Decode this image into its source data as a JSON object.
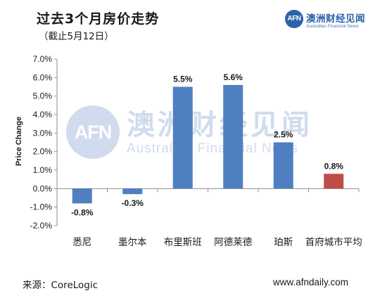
{
  "header": {
    "title": "过去3个月房价走势",
    "subtitle": "（截止5月12日）"
  },
  "logo": {
    "mark": "AFN",
    "name_cn": "澳洲财经见闻",
    "name_en": "Australian Financial News"
  },
  "watermark": {
    "mark": "AFN",
    "name_cn": "澳洲财经见闻",
    "name_en": "Australian Financial News"
  },
  "footer": {
    "source": "来源：CoreLogic",
    "website": "www.afndaily.com"
  },
  "colors": {
    "bar_blue": "#4f7fc0",
    "bar_red": "#bf4d45"
  },
  "chart_data": {
    "type": "bar",
    "title": "过去3个月房价走势",
    "subtitle": "（截止5月12日）",
    "xlabel": "",
    "ylabel": "Price Change",
    "ylim": [
      -2.0,
      7.0
    ],
    "yticks": [
      "7.0%",
      "6.0%",
      "5.0%",
      "4.0%",
      "3.0%",
      "2.0%",
      "1.0%",
      "0.0%",
      "-1.0%",
      "-2.0%"
    ],
    "categories": [
      "悉尼",
      "墨尔本",
      "布里斯班",
      "阿德莱德",
      "珀斯",
      "首府城市平均"
    ],
    "values": [
      -0.8,
      -0.3,
      5.5,
      5.6,
      2.5,
      0.8
    ],
    "data_labels": [
      "-0.8%",
      "-0.3%",
      "5.5%",
      "5.6%",
      "2.5%",
      "0.8%"
    ],
    "bar_colors": [
      "#4f7fc0",
      "#4f7fc0",
      "#4f7fc0",
      "#4f7fc0",
      "#4f7fc0",
      "#bf4d45"
    ],
    "grid": false,
    "legend": "none"
  }
}
